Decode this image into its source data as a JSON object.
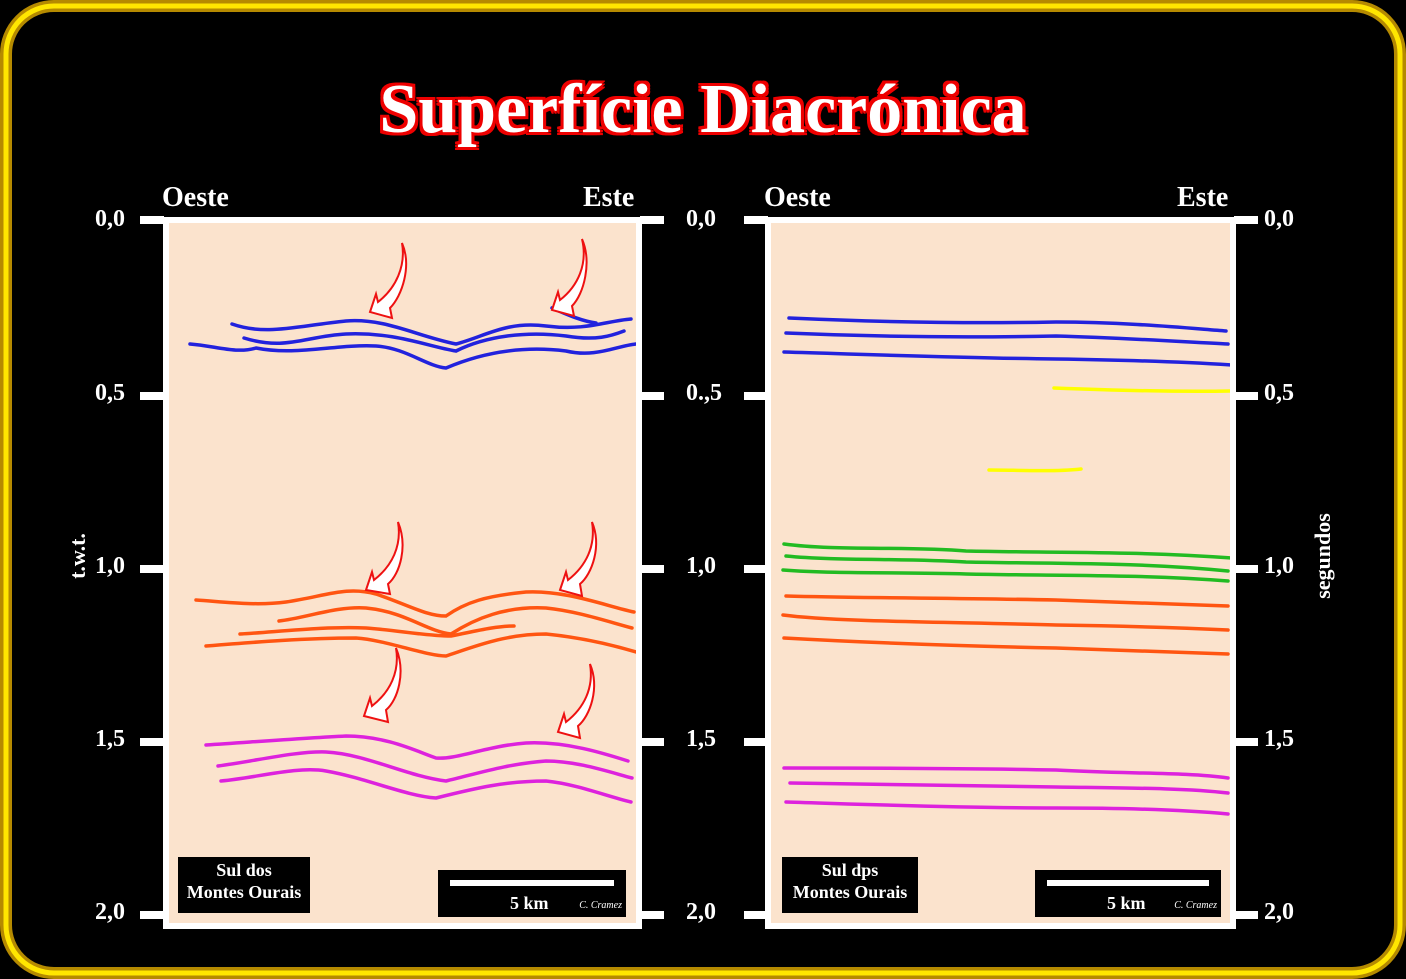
{
  "title": "Superfície Diacrónica",
  "left_panel": {
    "west": "Oeste",
    "east": "Este",
    "ticks": [
      "0,0",
      "0,5",
      "1,0",
      "1,5",
      "2,0"
    ],
    "axis_label": "t.w.t.",
    "location": [
      "Sul dos",
      "Montes Ourais"
    ],
    "scale": "5 km",
    "author": "C. Cramez"
  },
  "right_panel": {
    "west": "Oeste",
    "east": "Este",
    "ticks_left": [
      "0,0",
      "0.,5",
      "1,0",
      "1,5",
      "2,0"
    ],
    "ticks_right": [
      "0,0",
      "0,5",
      "1,0",
      "1,5",
      "2,0"
    ],
    "axis_label": "segundos",
    "location": [
      "Sul dps",
      "Montes Ourais"
    ],
    "scale": "5 km",
    "author": "C. Cramez"
  },
  "colors": {
    "blue": "#2222dd",
    "orange": "#ff5511",
    "magenta": "#dd22dd",
    "green": "#22bb22",
    "yellow": "#ffff00",
    "arrow": "#ee1111",
    "background": "#fbe3cd",
    "frame": "#ffdd00"
  },
  "icons": [
    "curved-arrow-icon"
  ]
}
